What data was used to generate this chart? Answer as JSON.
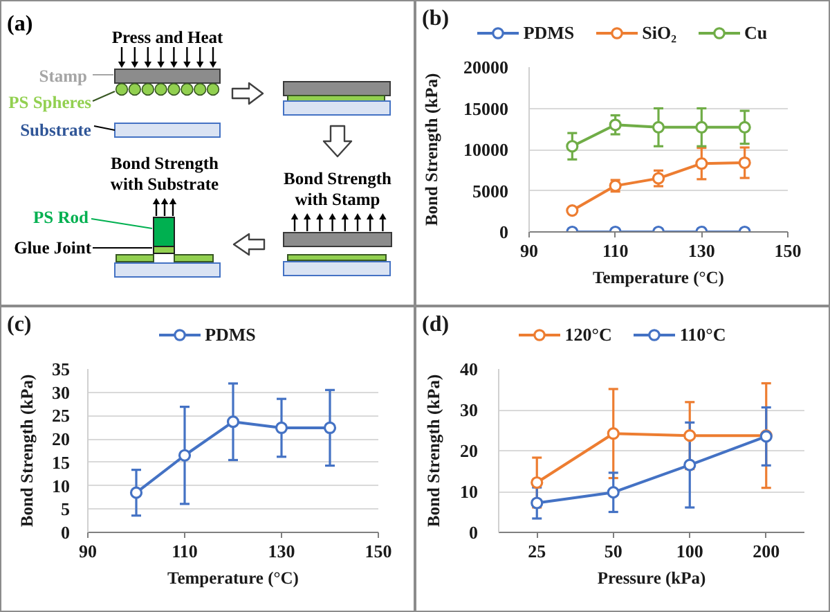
{
  "chart_data": [
    {
      "type": "other",
      "annotations": [
        "(a)",
        "Press and Heat",
        "Stamp",
        "PS Spheres",
        "Substrate",
        "Bond Strength with Substrate",
        "PS Rod",
        "Glue Joint",
        "Bond Strength with Stamp"
      ]
    },
    {
      "type": "line",
      "annotations": [
        "(b)"
      ],
      "xlabel": "Temperature (°C)",
      "ylabel": "Bond Strength (kPa)",
      "x": [
        100,
        110,
        120,
        130,
        140
      ],
      "xlim": [
        90,
        150
      ],
      "xticks": [
        90,
        110,
        130,
        150
      ],
      "ylim": [
        0,
        20000
      ],
      "yticks": [
        0,
        5000,
        10000,
        15000,
        20000
      ],
      "grid": "y",
      "legend": "top",
      "marker": "circle",
      "line_style": "solid",
      "series": [
        {
          "name": "PDMS",
          "color": "#4472c4",
          "values": [
            0,
            0,
            0,
            0,
            0
          ]
        },
        {
          "name": "SiO₂",
          "color": "#ed7d31",
          "values": [
            2600,
            5600,
            6500,
            8300,
            8400
          ],
          "errors": [
            null,
            700,
            950,
            1900,
            1850
          ]
        },
        {
          "name": "Cu",
          "color": "#70ad47",
          "values": [
            10400,
            13000,
            12700,
            12700,
            12700
          ],
          "errors": [
            1600,
            1150,
            2300,
            2300,
            2000
          ]
        }
      ]
    },
    {
      "type": "line",
      "annotations": [
        "(c)"
      ],
      "xlabel": "Temperature (°C)",
      "ylabel": "Bond Strength (kPa)",
      "x": [
        100,
        110,
        120,
        130,
        140
      ],
      "xlim": [
        90,
        150
      ],
      "xticks": [
        90,
        110,
        130,
        150
      ],
      "ylim": [
        0,
        35
      ],
      "yticks": [
        0,
        5,
        10,
        15,
        20,
        25,
        30,
        35
      ],
      "grid": "y",
      "legend": "top",
      "marker": "circle",
      "line_style": "solid",
      "series": [
        {
          "name": "PDMS",
          "color": "#4472c4",
          "values": [
            8.5,
            16.5,
            23.7,
            22.4,
            22.4
          ],
          "errors": [
            4.9,
            10.4,
            8.2,
            6.2,
            8.1
          ]
        }
      ]
    },
    {
      "type": "line",
      "annotations": [
        "(d)"
      ],
      "xlabel": "Pressure (kPa)",
      "ylabel": "Bond Strength (kPa)",
      "categories": [
        "25",
        "50",
        "100",
        "200"
      ],
      "ylim": [
        0,
        40
      ],
      "yticks": [
        0,
        10,
        20,
        30,
        40
      ],
      "grid": "y",
      "legend": "top",
      "marker": "circle",
      "line_style": "solid",
      "series": [
        {
          "name": "120°C",
          "color": "#ed7d31",
          "values": [
            12.2,
            24.2,
            23.7,
            23.7
          ],
          "errors": [
            6.1,
            10.9,
            8.2,
            12.8
          ]
        },
        {
          "name": "110°C",
          "color": "#4472c4",
          "values": [
            7.2,
            9.8,
            16.5,
            23.5
          ],
          "errors": [
            3.8,
            4.8,
            10.4,
            7.1
          ]
        }
      ]
    }
  ]
}
